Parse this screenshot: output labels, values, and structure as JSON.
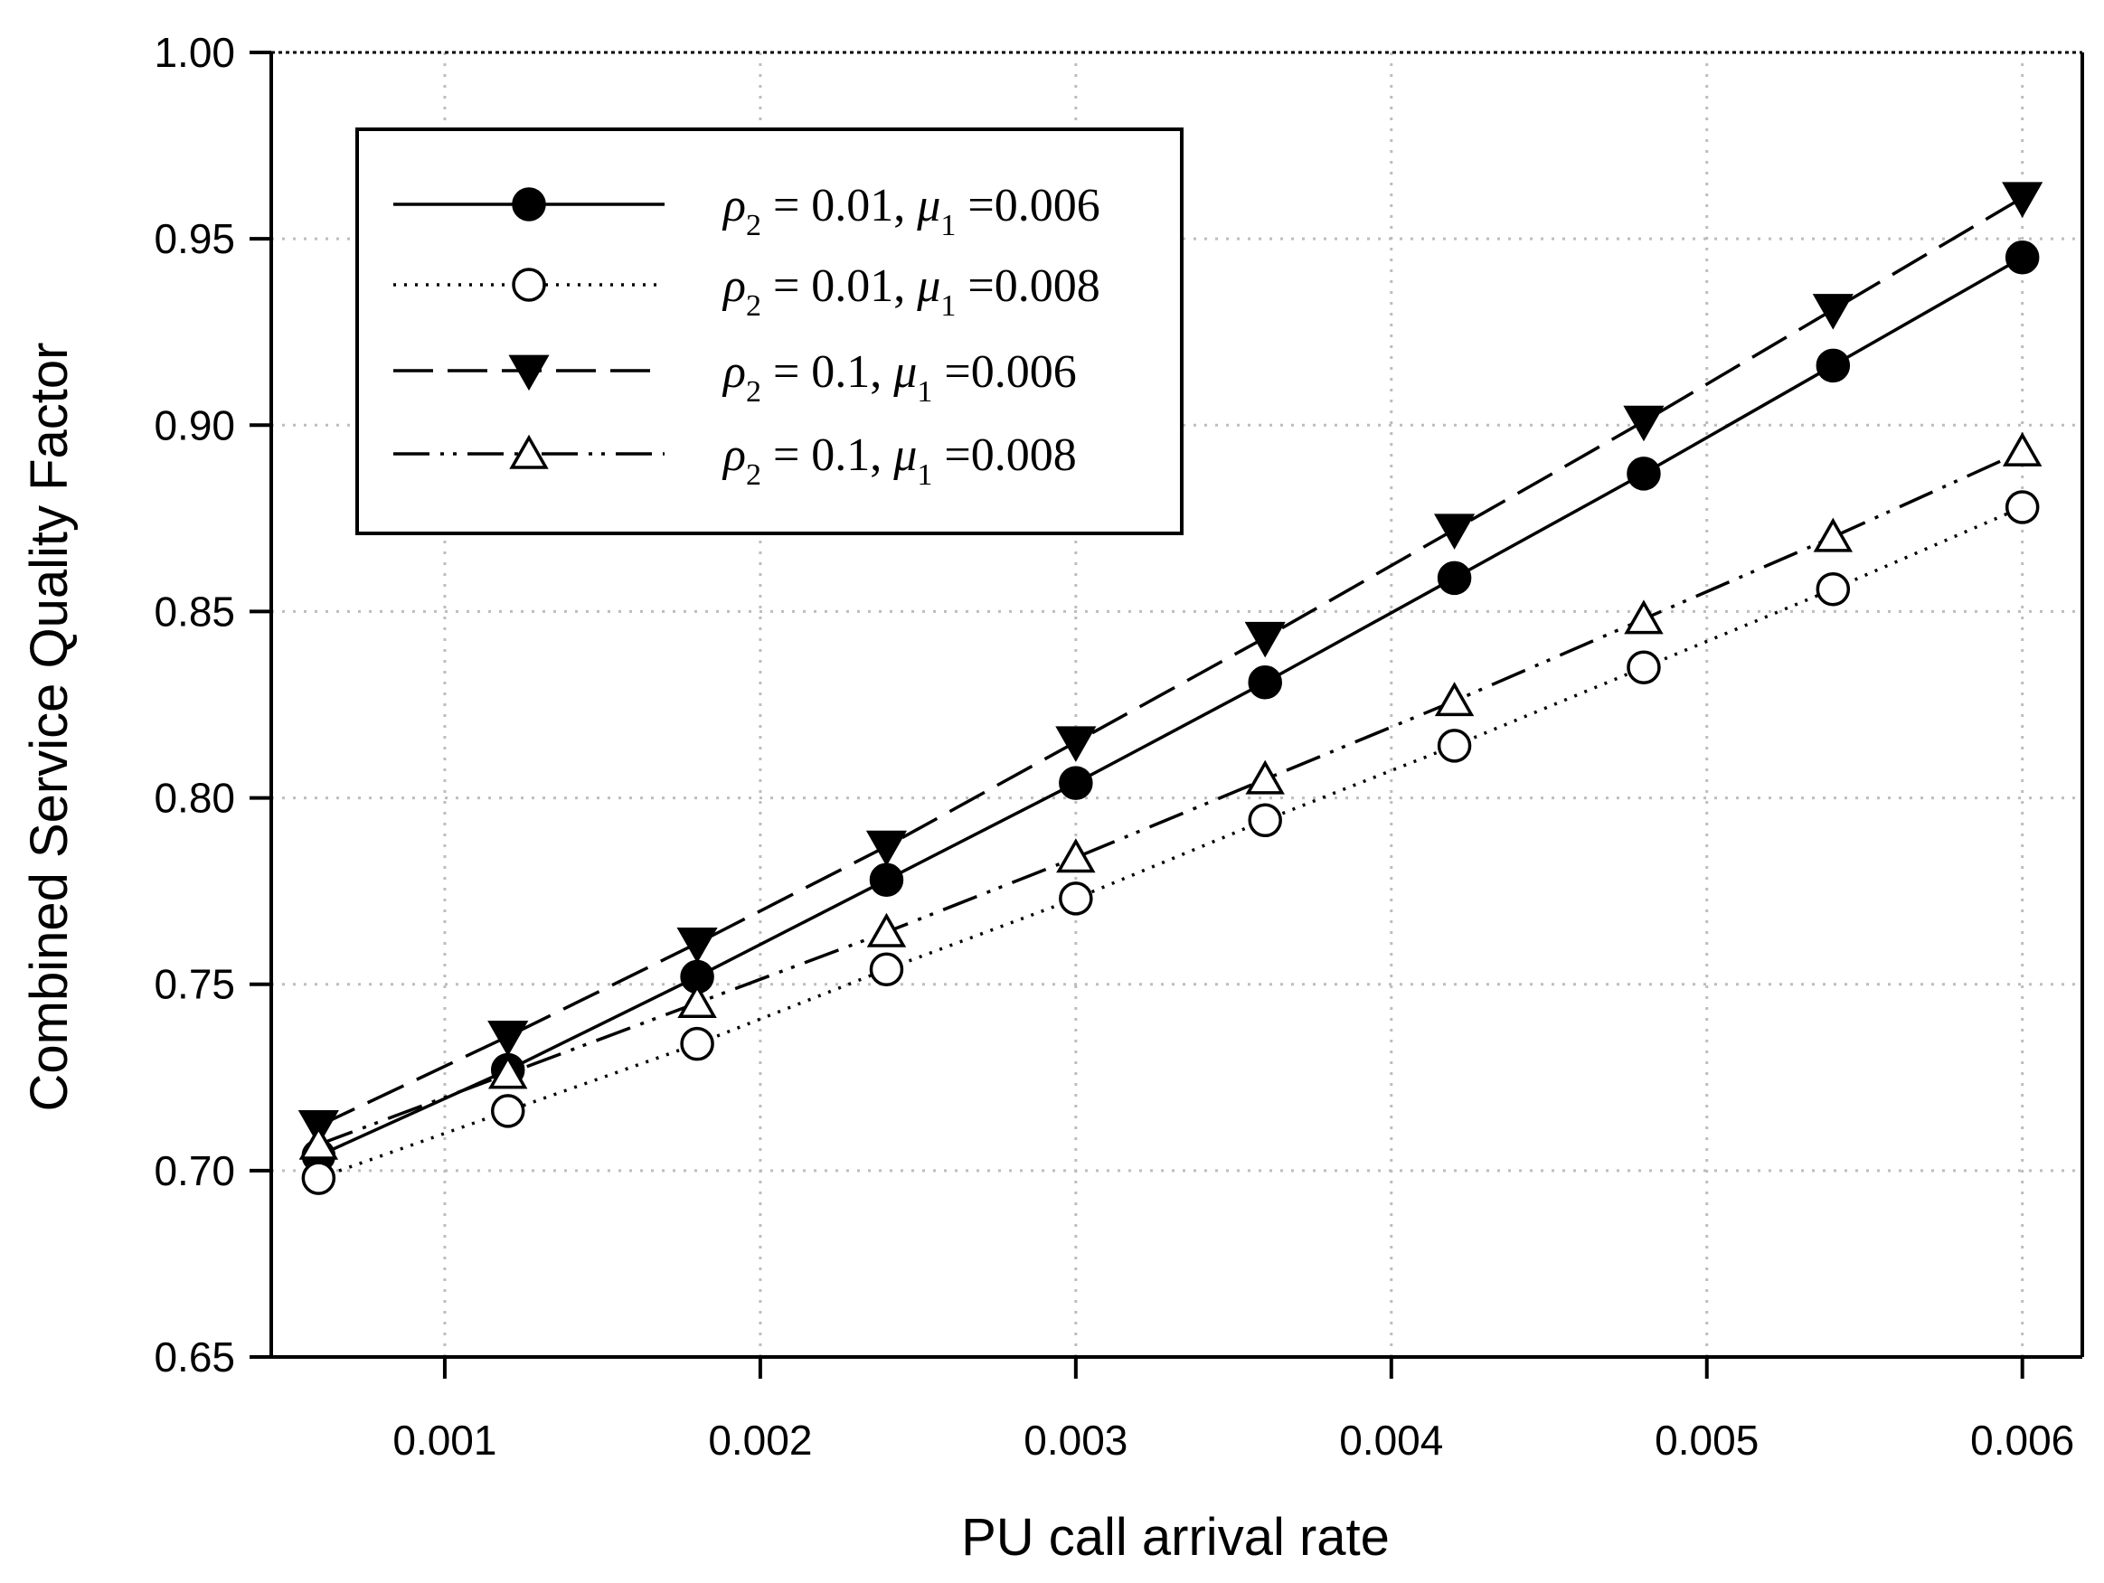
{
  "chart_data": {
    "type": "line",
    "title": "",
    "xlabel": "PU call arrival rate",
    "ylabel": "Combined Service Quality Factor",
    "xlim": [
      0.00045,
      0.00619
    ],
    "ylim": [
      0.65,
      1.0
    ],
    "grid": true,
    "x_ticks": [
      0.001,
      0.002,
      0.003,
      0.004,
      0.005,
      0.006
    ],
    "x_tick_labels": [
      "0.001",
      "0.002",
      "0.003",
      "0.004",
      "0.005",
      "0.006"
    ],
    "y_ticks": [
      0.65,
      0.7,
      0.75,
      0.8,
      0.85,
      0.9,
      0.95,
      1.0
    ],
    "y_tick_labels": [
      "0.65",
      "0.70",
      "0.75",
      "0.80",
      "0.85",
      "0.90",
      "0.95",
      "1.00"
    ],
    "x": [
      0.0006,
      0.0012,
      0.0018,
      0.0024,
      0.003,
      0.0036,
      0.0042,
      0.0048,
      0.0054,
      0.006
    ],
    "legend_position": "top-left",
    "series": [
      {
        "name": "ρ2 = 0.01, μ1 =0.006",
        "rho": "ρ",
        "rho_sub": "2",
        "rho_val": "= 0.01,",
        "mu": "μ",
        "mu_sub": "1",
        "mu_val": "=0.006",
        "marker": "filled-circle",
        "line": "solid",
        "color": "#000000",
        "values": [
          0.704,
          0.727,
          0.752,
          0.778,
          0.804,
          0.831,
          0.859,
          0.887,
          0.916,
          0.945
        ]
      },
      {
        "name": "ρ2 = 0.01, μ1 =0.008",
        "rho": "ρ",
        "rho_sub": "2",
        "rho_val": "= 0.01,",
        "mu": "μ",
        "mu_sub": "1",
        "mu_val": "=0.008",
        "marker": "open-circle",
        "line": "dotted",
        "color": "#000000",
        "values": [
          0.698,
          0.716,
          0.734,
          0.754,
          0.773,
          0.794,
          0.814,
          0.835,
          0.856,
          0.878
        ]
      },
      {
        "name": "ρ2 = 0.1, μ1 =0.006",
        "rho": "ρ",
        "rho_sub": "2",
        "rho_val": "= 0.1,",
        "mu": "μ",
        "mu_sub": "1",
        "mu_val": "=0.006",
        "marker": "filled-triangle-down",
        "line": "dashed",
        "color": "#000000",
        "values": [
          0.712,
          0.736,
          0.761,
          0.787,
          0.815,
          0.843,
          0.872,
          0.901,
          0.931,
          0.961
        ]
      },
      {
        "name": "ρ2 = 0.1, μ1 =0.008",
        "rho": "ρ",
        "rho_sub": "2",
        "rho_val": "= 0.1,",
        "mu": "μ",
        "mu_sub": "1",
        "mu_val": "=0.008",
        "marker": "open-triangle-up",
        "line": "dash-dot-dot",
        "color": "#000000",
        "values": [
          0.707,
          0.726,
          0.745,
          0.764,
          0.784,
          0.805,
          0.826,
          0.848,
          0.87,
          0.893
        ]
      }
    ]
  }
}
